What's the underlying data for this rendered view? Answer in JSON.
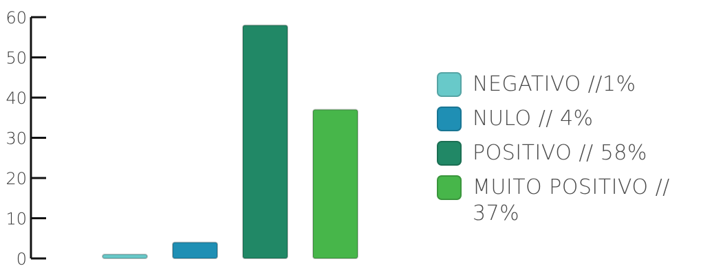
{
  "chart_data": {
    "type": "bar",
    "categories": [
      "NEGATIVO //1%",
      "NULO // 4%",
      "POSITIVO // 58%",
      "MUITO POSITIVO // 37%"
    ],
    "values": [
      1,
      4,
      58,
      37
    ],
    "colors": [
      "#68c9c9",
      "#1f8fb4",
      "#218866",
      "#47b64a"
    ],
    "ylim": [
      0,
      60
    ],
    "yticks": [
      "0",
      "10",
      "20",
      "30",
      "40",
      "50",
      "60"
    ],
    "grid": false,
    "legend_position": "right",
    "legend": [
      "NEGATIVO //1%",
      "NULO // 4%",
      "POSITIVO // 58%",
      "MUITO POSITIVO // 37%"
    ]
  }
}
